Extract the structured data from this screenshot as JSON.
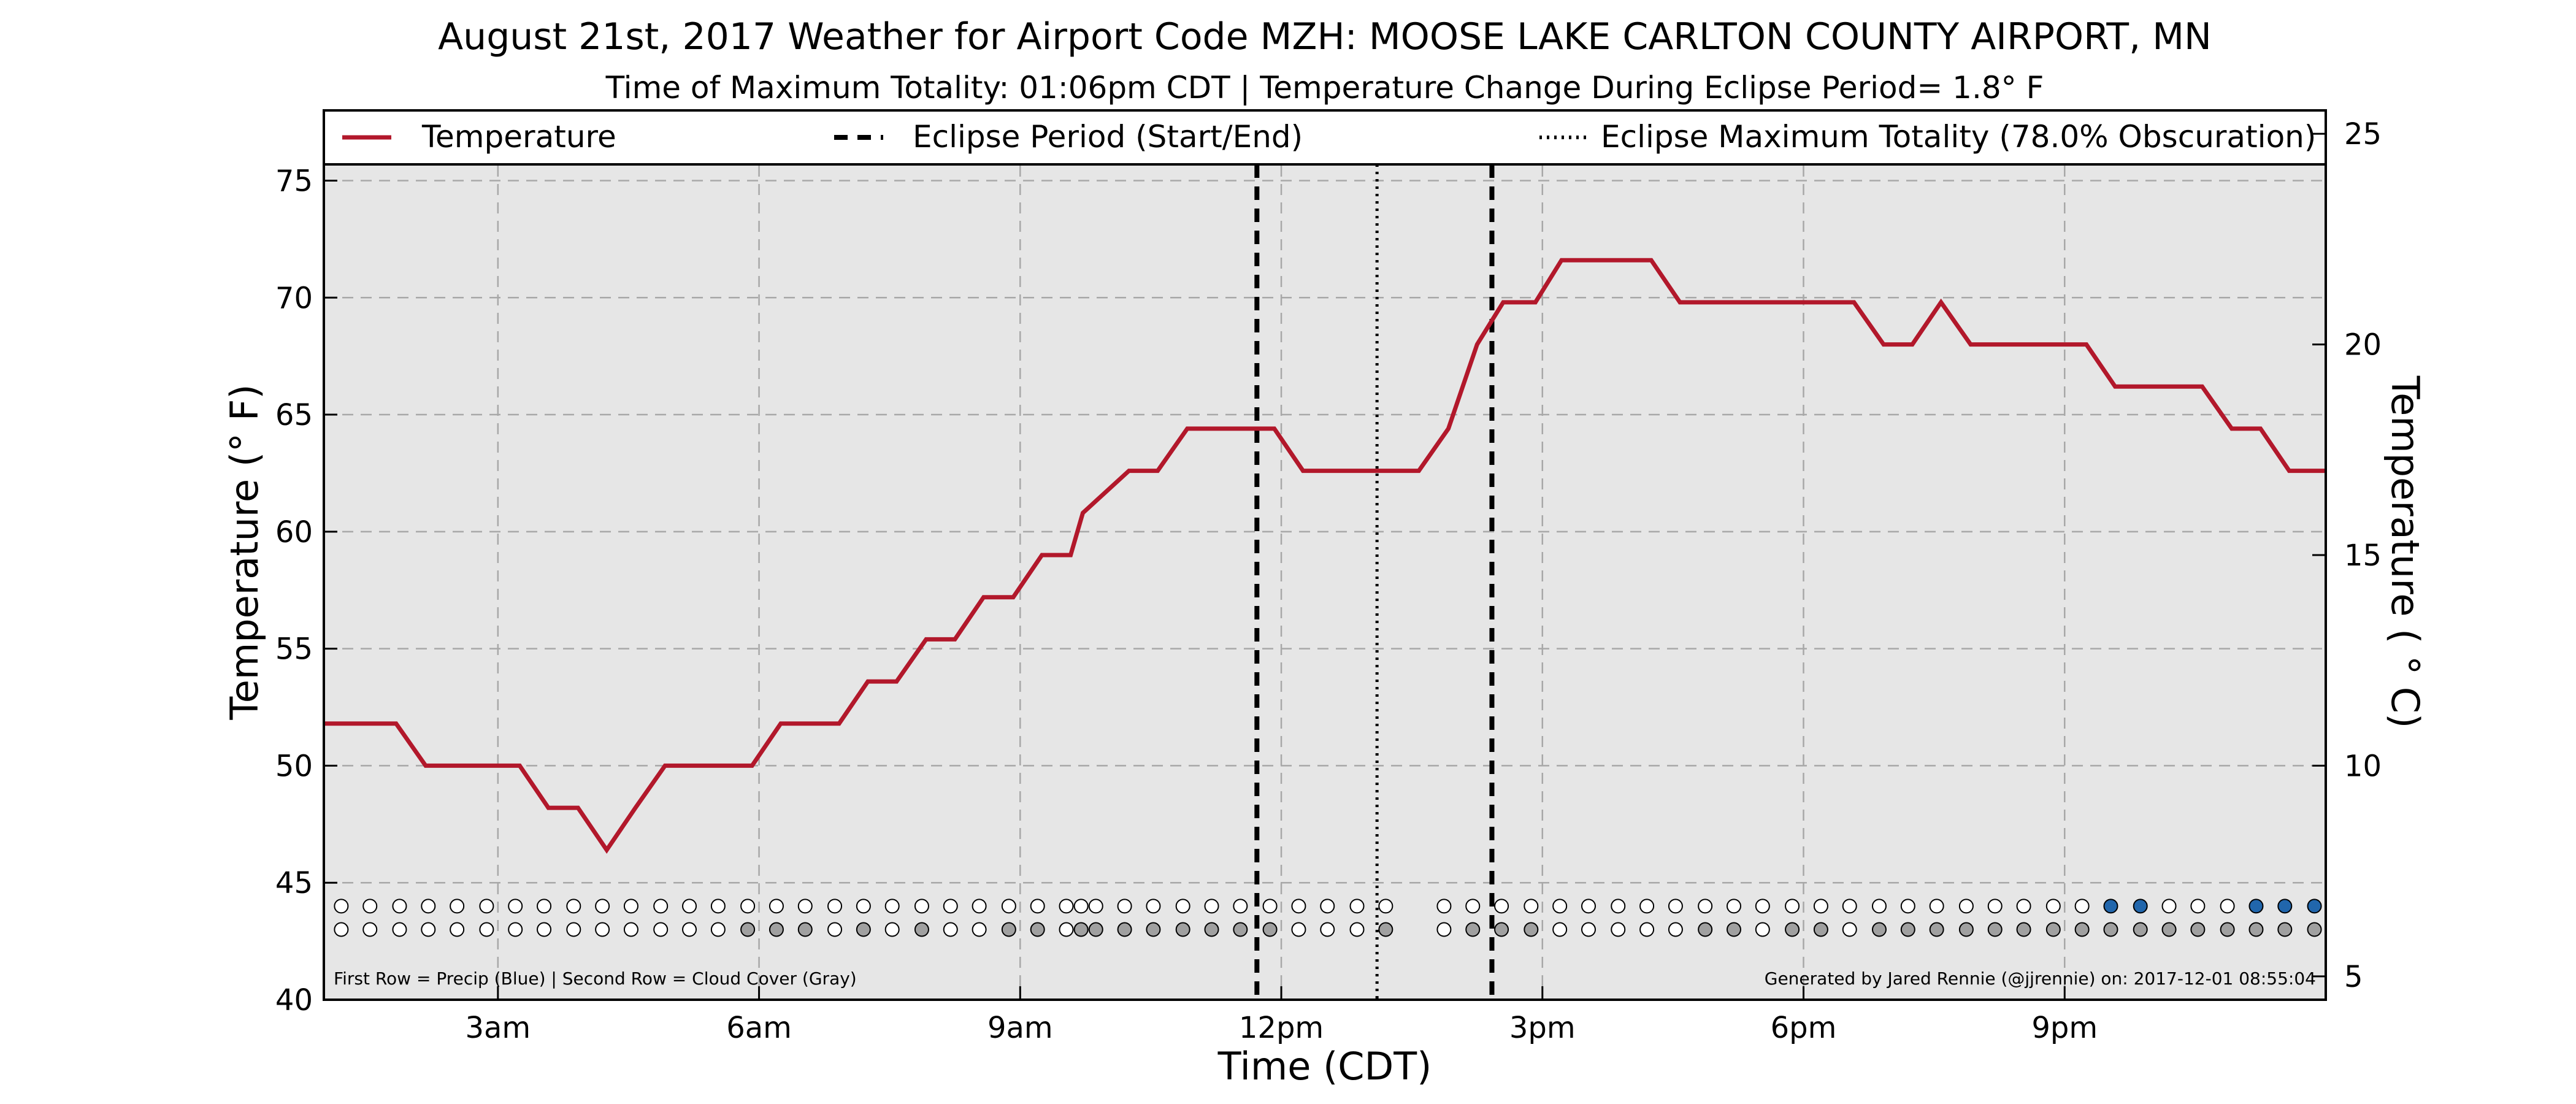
{
  "chart_data": {
    "type": "line",
    "title": "August 21st, 2017 Weather for Airport Code MZH: MOOSE LAKE CARLTON COUNTY AIRPORT, MN",
    "subtitle": "Time of Maximum Totality: 01:06pm CDT | Temperature Change During Eclipse Period= 1.8° F",
    "xlabel": "Time (CDT)",
    "ylabel_left": "Temperature (° F)",
    "ylabel_right": "Temperature ( ° C)",
    "xlim": [
      1.0,
      24.0
    ],
    "ylim": [
      40,
      78
    ],
    "x_ticks": [
      3,
      6,
      9,
      12,
      15,
      18,
      21
    ],
    "x_tick_labels": [
      "3am",
      "6am",
      "9am",
      "12pm",
      "3pm",
      "6pm",
      "9pm"
    ],
    "y_ticks": [
      40,
      45,
      50,
      55,
      60,
      65,
      70,
      75
    ],
    "y_tick_labels": [
      "40",
      "45",
      "50",
      "55",
      "60",
      "65",
      "70",
      "75"
    ],
    "right_ticks_c": [
      5,
      10,
      15,
      20,
      25
    ],
    "right_tick_labels": [
      "5",
      "10",
      "15",
      "20",
      "25"
    ],
    "grid": true,
    "legend_position": "top",
    "legend": {
      "temperature": "Temperature",
      "eclipse_period": "Eclipse Period (Start/End)",
      "eclipse_max": "Eclipse Maximum Totality (78.0% Obscuration)"
    },
    "series": [
      {
        "name": "Temperature",
        "color": "#b2182b",
        "points": [
          [
            1.0,
            51.8
          ],
          [
            1.83,
            51.8
          ],
          [
            2.17,
            50.0
          ],
          [
            3.25,
            50.0
          ],
          [
            3.58,
            48.2
          ],
          [
            3.92,
            48.2
          ],
          [
            4.25,
            46.4
          ],
          [
            4.58,
            48.2
          ],
          [
            4.92,
            50.0
          ],
          [
            5.92,
            50.0
          ],
          [
            6.25,
            51.8
          ],
          [
            6.92,
            51.8
          ],
          [
            7.25,
            53.6
          ],
          [
            7.58,
            53.6
          ],
          [
            7.92,
            55.4
          ],
          [
            8.25,
            55.4
          ],
          [
            8.58,
            57.2
          ],
          [
            8.92,
            57.2
          ],
          [
            9.25,
            59.0
          ],
          [
            9.58,
            59.0
          ],
          [
            9.72,
            60.8
          ],
          [
            10.25,
            62.6
          ],
          [
            10.58,
            62.6
          ],
          [
            10.92,
            64.4
          ],
          [
            11.92,
            64.4
          ],
          [
            12.25,
            62.6
          ],
          [
            13.58,
            62.6
          ],
          [
            13.92,
            64.4
          ],
          [
            14.25,
            68.0
          ],
          [
            14.55,
            69.8
          ],
          [
            14.92,
            69.8
          ],
          [
            15.22,
            71.6
          ],
          [
            16.25,
            71.6
          ],
          [
            16.58,
            69.8
          ],
          [
            18.58,
            69.8
          ],
          [
            18.92,
            68.0
          ],
          [
            19.25,
            68.0
          ],
          [
            19.58,
            69.8
          ],
          [
            19.92,
            68.0
          ],
          [
            21.25,
            68.0
          ],
          [
            21.58,
            66.2
          ],
          [
            22.58,
            66.2
          ],
          [
            22.92,
            64.4
          ],
          [
            23.25,
            64.4
          ],
          [
            23.58,
            62.6
          ],
          [
            24.0,
            62.6
          ]
        ]
      }
    ],
    "eclipse_start_hour": 11.72,
    "eclipse_end_hour": 14.42,
    "eclipse_max_hour": 13.1,
    "dot_rows": {
      "x": [
        1.2,
        1.53,
        1.87,
        2.2,
        2.53,
        2.87,
        3.2,
        3.53,
        3.87,
        4.2,
        4.53,
        4.87,
        5.2,
        5.53,
        5.87,
        6.2,
        6.53,
        6.87,
        7.2,
        7.53,
        7.87,
        8.2,
        8.53,
        8.87,
        9.2,
        9.53,
        9.7,
        9.87,
        10.2,
        10.53,
        10.87,
        11.2,
        11.53,
        11.87,
        12.2,
        12.53,
        12.87,
        13.2,
        13.87,
        14.2,
        14.53,
        14.87,
        15.2,
        15.53,
        15.87,
        16.2,
        16.53,
        16.87,
        17.2,
        17.53,
        17.87,
        18.2,
        18.53,
        18.87,
        19.2,
        19.53,
        19.87,
        20.2,
        20.53,
        20.87,
        21.2,
        21.53,
        21.87,
        22.2,
        22.53,
        22.87,
        23.2,
        23.53,
        23.87
      ],
      "precip": [
        0,
        0,
        0,
        0,
        0,
        0,
        0,
        0,
        0,
        0,
        0,
        0,
        0,
        0,
        0,
        0,
        0,
        0,
        0,
        0,
        0,
        0,
        0,
        0,
        0,
        0,
        0,
        0,
        0,
        0,
        0,
        0,
        0,
        0,
        0,
        0,
        0,
        0,
        0,
        0,
        0,
        0,
        0,
        0,
        0,
        0,
        0,
        0,
        0,
        0,
        0,
        0,
        0,
        0,
        0,
        0,
        0,
        0,
        0,
        0,
        0,
        1,
        1,
        0,
        0,
        0,
        1,
        1,
        1
      ],
      "cloud": [
        0,
        0,
        0,
        0,
        0,
        0,
        0,
        0,
        0,
        0,
        0,
        0,
        0,
        0,
        1,
        1,
        1,
        0,
        1,
        0,
        1,
        0,
        0,
        1,
        1,
        0,
        1,
        1,
        1,
        1,
        1,
        1,
        1,
        1,
        0,
        0,
        0,
        1,
        0,
        1,
        1,
        1,
        0,
        0,
        0,
        0,
        0,
        1,
        1,
        0,
        1,
        1,
        0,
        1,
        1,
        1,
        1,
        1,
        1,
        1,
        1,
        1,
        1,
        1,
        1,
        1,
        1,
        1,
        1
      ],
      "precip_color": "#2166ac",
      "cloud_color": "#a0a0a0",
      "empty_color": "#ffffff",
      "precip_row_value": 44.0,
      "cloud_row_value": 43.0
    },
    "footnote_left": "First Row = Precip (Blue) | Second Row = Cloud Cover (Gray)",
    "footnote_right": "Generated by Jared Rennie (@jjrennie) on: 2017-12-01 08:55:04"
  }
}
